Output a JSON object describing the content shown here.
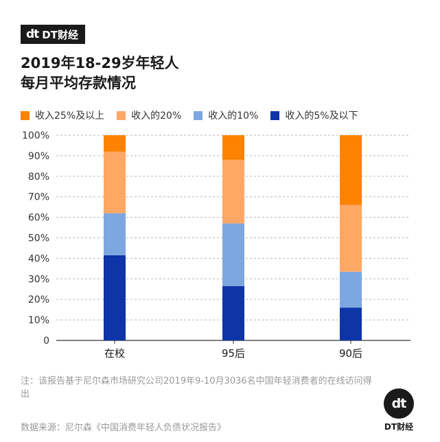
{
  "brand": {
    "mark": "dt",
    "name": "DT财经"
  },
  "title_lines": [
    "2019年18-29岁年轻人",
    "每月平均存款情况"
  ],
  "colors": {
    "s1": "#ff8200",
    "s2": "#ffa865",
    "s3": "#7da7e0",
    "s4": "#0e34a8",
    "grid": "#b8b8b8",
    "axis": "#333333"
  },
  "chart_data": {
    "type": "bar",
    "stacked": true,
    "categories": [
      "在校",
      "95后",
      "90后"
    ],
    "series": [
      {
        "name": "收入的5%及以下",
        "color": "#0e34a8",
        "values": [
          41.5,
          26.5,
          16
        ]
      },
      {
        "name": "收入的10%",
        "color": "#7da7e0",
        "values": [
          20.5,
          30.5,
          17.5
        ]
      },
      {
        "name": "收入的20%",
        "color": "#ffa865",
        "values": [
          30,
          31,
          32.5
        ]
      },
      {
        "name": "收入25%及以上",
        "color": "#ff8200",
        "values": [
          8,
          12,
          34
        ]
      }
    ],
    "legend_order": [
      "收入25%及以上",
      "收入的20%",
      "收入的10%",
      "收入的5%及以下"
    ],
    "y_ticks": [
      "0",
      "10%",
      "20%",
      "30%",
      "40%",
      "50%",
      "60%",
      "70%",
      "80%",
      "90%",
      "100%"
    ],
    "ylim": [
      0,
      100
    ],
    "grid": true,
    "legend_position": "top"
  },
  "note": "注：该报告基于尼尔森市场研究公司2019年9-10月3036名中国年轻消费者的在线访问得出",
  "source": "数据来源：尼尔森《中国消费年轻人负债状况报告》",
  "corner_brand": {
    "mark": "dt",
    "name": "DT财经"
  }
}
